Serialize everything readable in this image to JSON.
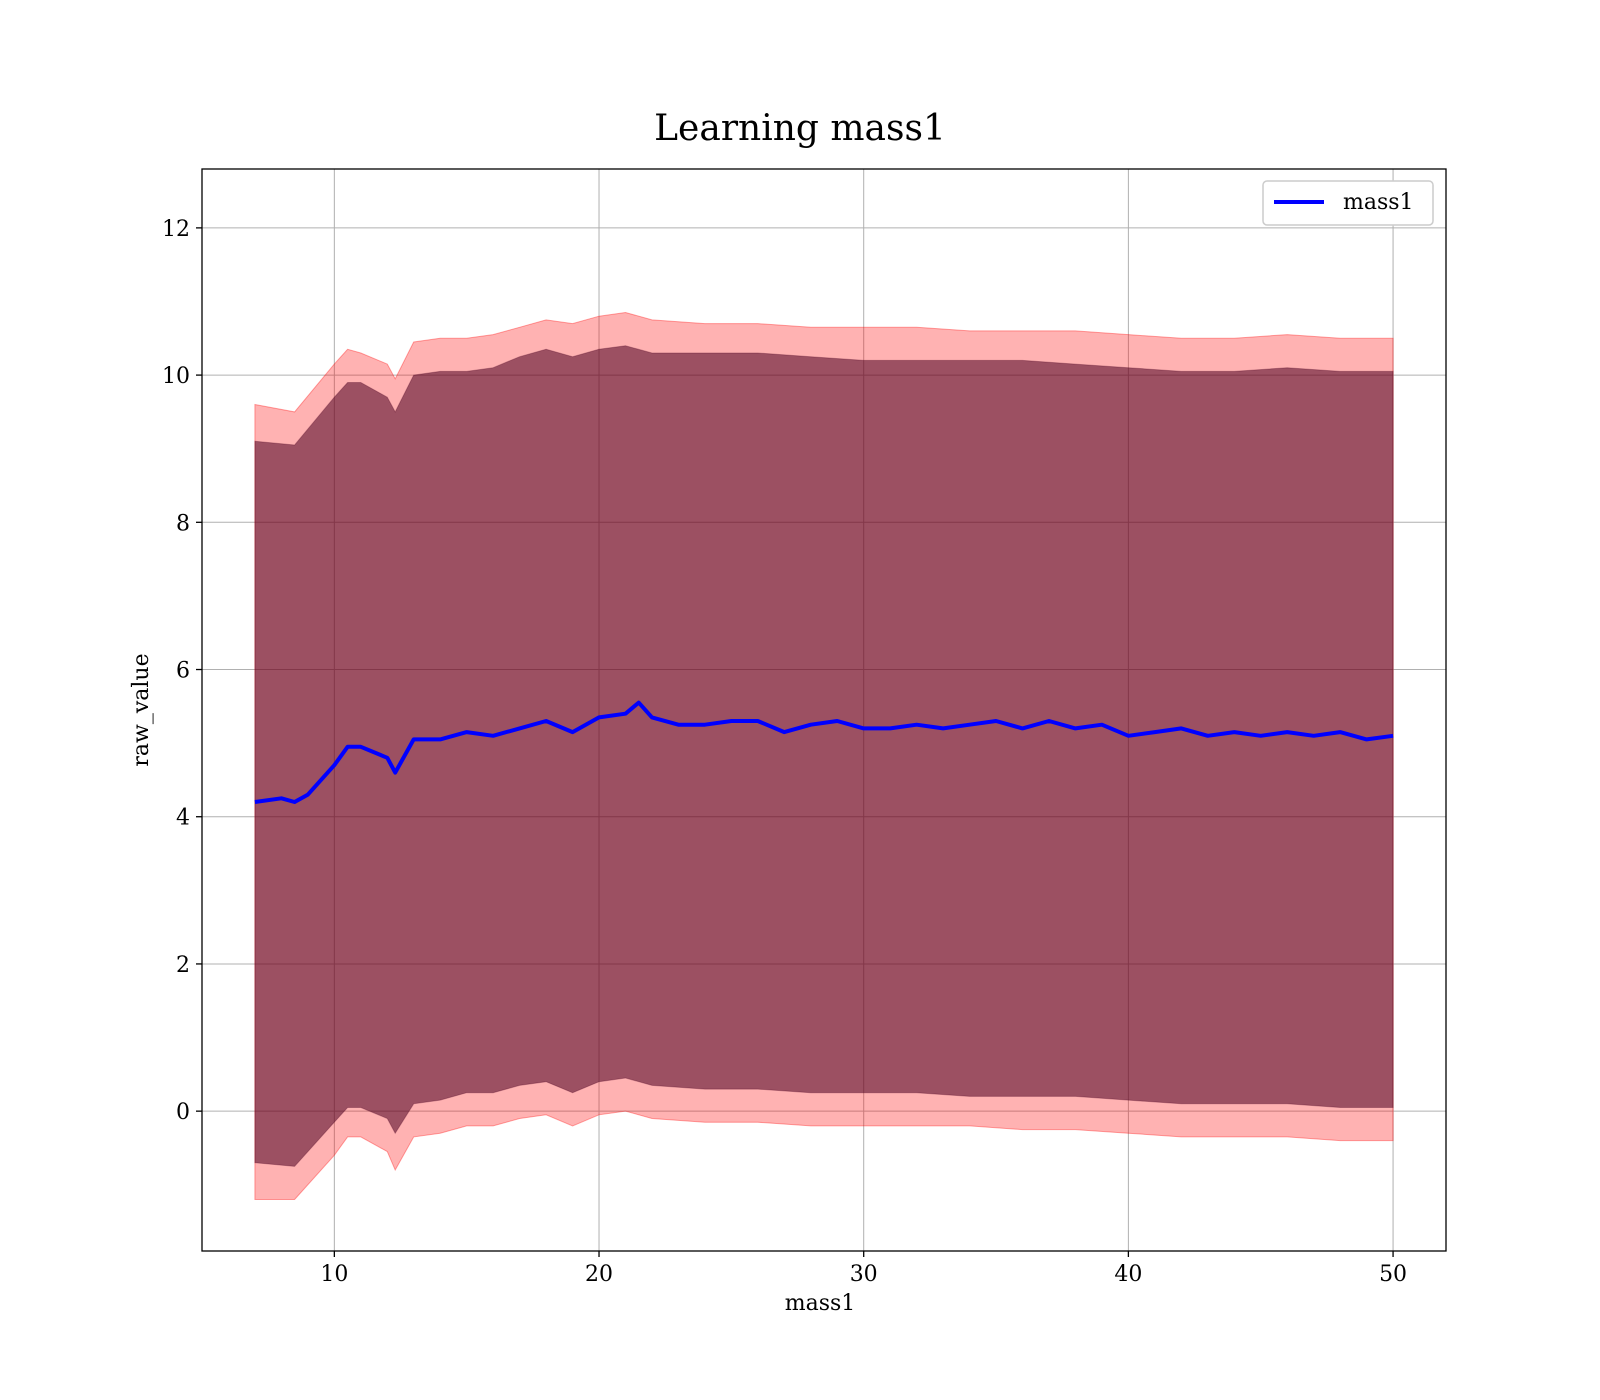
{
  "chart_data": {
    "type": "line",
    "title": "Learning mass1",
    "xlabel": "mass1",
    "ylabel": "raw_value",
    "xlim": [
      5,
      52
    ],
    "ylim": [
      -1.9,
      12.8
    ],
    "xticks": [
      10,
      20,
      30,
      40,
      50
    ],
    "yticks": [
      0,
      2,
      4,
      6,
      8,
      10,
      12
    ],
    "grid": true,
    "legend_position": "top-right",
    "colors": {
      "line": "#0000ff",
      "band_outer": "#ff0000",
      "band_inner": "#4b0020",
      "band_mid": "#8b5e1a"
    },
    "series": [
      {
        "name": "mass1",
        "x": [
          7.0,
          8.0,
          8.5,
          9.0,
          10.0,
          10.5,
          11.0,
          12.0,
          12.3,
          13.0,
          14.0,
          15.0,
          16.0,
          17.0,
          18.0,
          19.0,
          20.0,
          21.0,
          21.5,
          22.0,
          23.0,
          24.0,
          25.0,
          26.0,
          27.0,
          28.0,
          29.0,
          30.0,
          31.0,
          32.0,
          33.0,
          34.0,
          35.0,
          36.0,
          37.0,
          38.0,
          39.0,
          40.0,
          41.0,
          42.0,
          43.0,
          44.0,
          45.0,
          46.0,
          47.0,
          48.0,
          49.0,
          50.0
        ],
        "y": [
          4.2,
          4.25,
          4.2,
          4.3,
          4.7,
          4.95,
          4.95,
          4.8,
          4.6,
          5.05,
          5.05,
          5.15,
          5.1,
          5.2,
          5.3,
          5.15,
          5.35,
          5.4,
          5.55,
          5.35,
          5.25,
          5.25,
          5.3,
          5.3,
          5.15,
          5.25,
          5.3,
          5.2,
          5.2,
          5.25,
          5.2,
          5.25,
          5.3,
          5.2,
          5.3,
          5.2,
          5.25,
          5.1,
          5.15,
          5.2,
          5.1,
          5.15,
          5.1,
          5.15,
          5.1,
          5.15,
          5.05,
          5.1
        ]
      }
    ],
    "bands": [
      {
        "label_hint": "outer",
        "x": [
          7.0,
          8.5,
          10.0,
          10.5,
          11.0,
          12.0,
          12.3,
          13.0,
          14.0,
          15.0,
          16.0,
          17.0,
          18.0,
          19.0,
          20.0,
          21.0,
          22.0,
          24.0,
          26.0,
          28.0,
          30.0,
          32.0,
          34.0,
          36.0,
          38.0,
          40.0,
          42.0,
          44.0,
          46.0,
          48.0,
          50.0
        ],
        "upper": [
          9.6,
          9.5,
          10.15,
          10.35,
          10.3,
          10.15,
          9.95,
          10.45,
          10.5,
          10.5,
          10.55,
          10.65,
          10.75,
          10.7,
          10.8,
          10.85,
          10.75,
          10.7,
          10.7,
          10.65,
          10.65,
          10.65,
          10.6,
          10.6,
          10.6,
          10.55,
          10.5,
          10.5,
          10.55,
          10.5,
          10.5
        ],
        "lower": [
          -1.2,
          -1.2,
          -0.6,
          -0.35,
          -0.35,
          -0.55,
          -0.8,
          -0.35,
          -0.3,
          -0.2,
          -0.2,
          -0.1,
          -0.05,
          -0.2,
          -0.05,
          0.0,
          -0.1,
          -0.15,
          -0.15,
          -0.2,
          -0.2,
          -0.2,
          -0.2,
          -0.25,
          -0.25,
          -0.3,
          -0.35,
          -0.35,
          -0.35,
          -0.4,
          -0.4
        ]
      },
      {
        "label_hint": "inner",
        "x": [
          7.0,
          8.5,
          10.0,
          10.5,
          11.0,
          12.0,
          12.3,
          13.0,
          14.0,
          15.0,
          16.0,
          17.0,
          18.0,
          19.0,
          20.0,
          21.0,
          22.0,
          24.0,
          26.0,
          28.0,
          30.0,
          32.0,
          34.0,
          36.0,
          38.0,
          40.0,
          42.0,
          44.0,
          46.0,
          48.0,
          50.0
        ],
        "upper": [
          9.1,
          9.05,
          9.7,
          9.9,
          9.9,
          9.7,
          9.5,
          10.0,
          10.05,
          10.05,
          10.1,
          10.25,
          10.35,
          10.25,
          10.35,
          10.4,
          10.3,
          10.3,
          10.3,
          10.25,
          10.2,
          10.2,
          10.2,
          10.2,
          10.15,
          10.1,
          10.05,
          10.05,
          10.1,
          10.05,
          10.05
        ],
        "lower": [
          -0.7,
          -0.75,
          -0.15,
          0.05,
          0.05,
          -0.1,
          -0.3,
          0.1,
          0.15,
          0.25,
          0.25,
          0.35,
          0.4,
          0.25,
          0.4,
          0.45,
          0.35,
          0.3,
          0.3,
          0.25,
          0.25,
          0.25,
          0.2,
          0.2,
          0.2,
          0.15,
          0.1,
          0.1,
          0.1,
          0.05,
          0.05
        ]
      }
    ]
  }
}
